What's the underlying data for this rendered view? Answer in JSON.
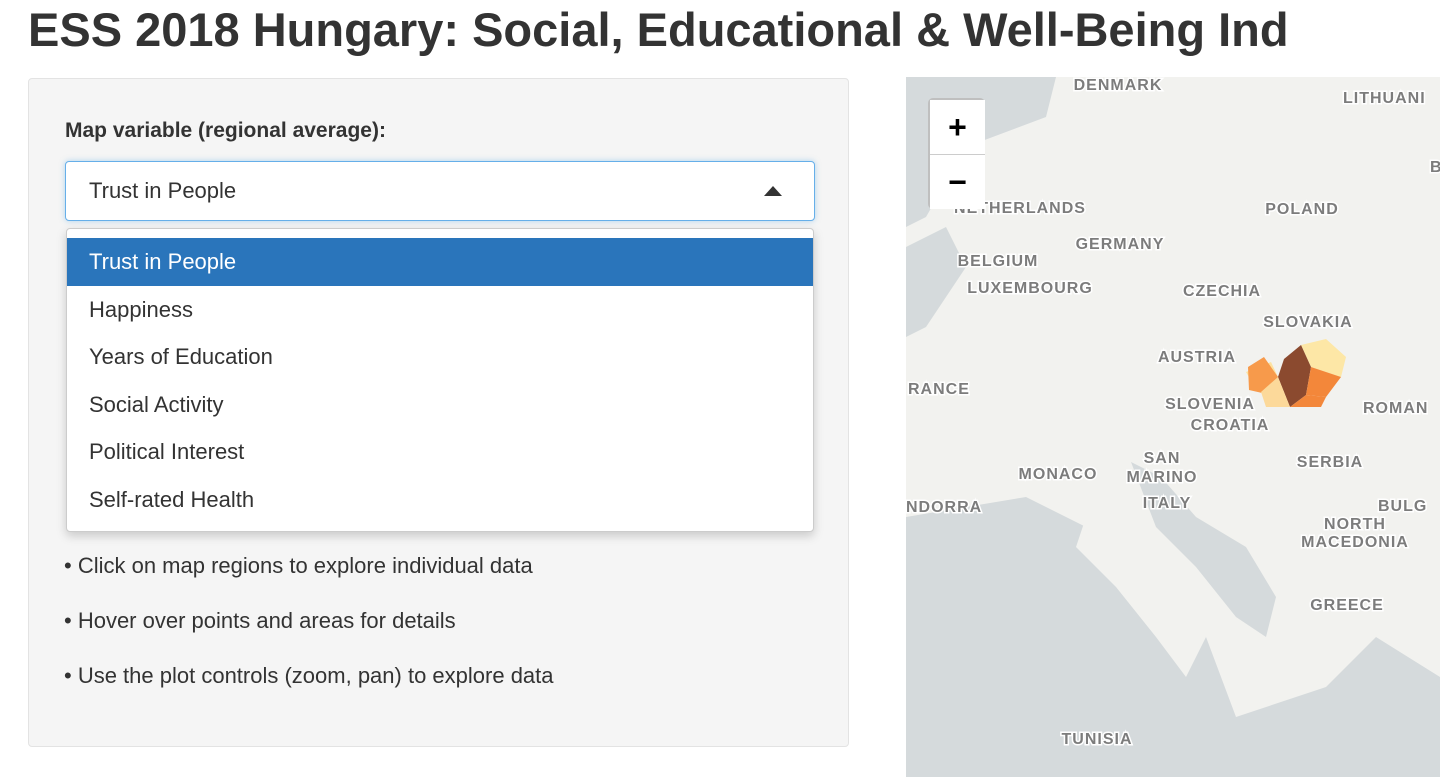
{
  "header": {
    "title": "ESS 2018 Hungary: Social, Educational & Well-Being Ind"
  },
  "sidebar": {
    "label": "Map variable (regional average):",
    "selected": "Trust in People",
    "options": [
      "Trust in People",
      "Happiness",
      "Years of Education",
      "Social Activity",
      "Political Interest",
      "Self-rated Health"
    ],
    "tips": [
      "• Click on map regions to explore individual data",
      "• Hover over points and areas for details",
      "• Use the plot controls (zoom, pan) to explore data"
    ]
  },
  "map": {
    "zoom_in": "+",
    "zoom_out": "−",
    "labels": [
      "DENMARK",
      "LITHUANI",
      "B",
      "NETHERLANDS",
      "POLAND",
      "GERMANY",
      "BELGIUM",
      "LUXEMBOURG",
      "CZECHIA",
      "SLOVAKIA",
      "AUSTRIA",
      "RANCE",
      "SLOVENIA",
      "CROATIA",
      "ROMAN",
      "SERBIA",
      "MONACO",
      "SAN",
      "MARINO",
      "ITALY",
      "NDORRA",
      "BULG",
      "NORTH",
      "MACEDONIA",
      "GREECE",
      "TUNISIA"
    ]
  }
}
